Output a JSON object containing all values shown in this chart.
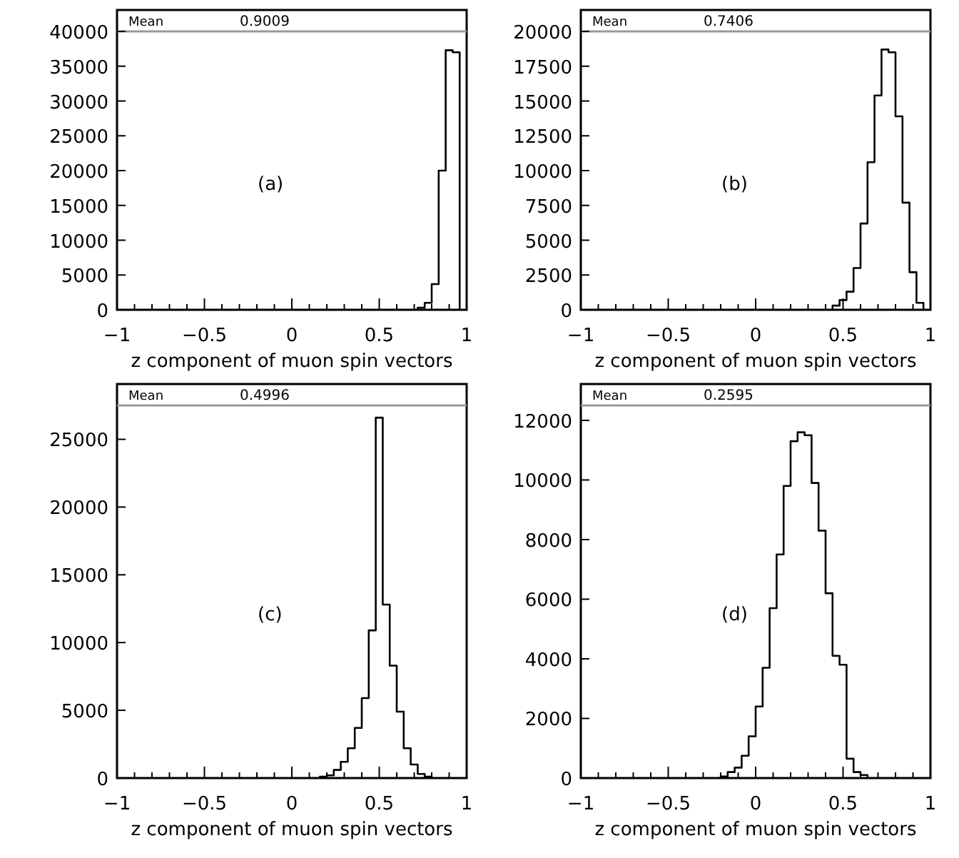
{
  "chart_data": [
    {
      "type": "histogram",
      "xlabel": "z component of muon spin vectors",
      "annotations": [
        "Mean",
        "0.9009",
        "(a)"
      ],
      "bins": [
        0.72,
        0.76,
        0.8,
        0.84,
        0.88,
        0.92,
        0.96
      ],
      "values": [
        300,
        1000,
        3700,
        20000,
        37300,
        37000
      ],
      "color": "#000000",
      "xlim": [
        -1,
        1
      ],
      "xticks": [
        -1,
        -0.5,
        0,
        0.5,
        1
      ],
      "ylim": [
        0,
        40000
      ],
      "yticks": [
        0,
        5000,
        10000,
        15000,
        20000,
        25000,
        30000,
        35000,
        40000
      ],
      "grid": false,
      "legend": false
    },
    {
      "type": "histogram",
      "xlabel": "z component of muon spin vectors",
      "annotations": [
        "Mean",
        "0.7406",
        "(b)"
      ],
      "bins": [
        0.44,
        0.48,
        0.52,
        0.56,
        0.6,
        0.64,
        0.68,
        0.72,
        0.76,
        0.8,
        0.84,
        0.88,
        0.92,
        0.96
      ],
      "values": [
        300,
        700,
        1300,
        3000,
        6200,
        10600,
        15400,
        18700,
        18500,
        13900,
        7700,
        2700,
        500
      ],
      "color": "#000000",
      "xlim": [
        -1,
        1
      ],
      "xticks": [
        -1,
        -0.5,
        0,
        0.5,
        1
      ],
      "ylim": [
        0,
        20000
      ],
      "yticks": [
        0,
        2500,
        5000,
        7500,
        10000,
        12500,
        15000,
        17500,
        20000
      ],
      "grid": false,
      "legend": false
    },
    {
      "type": "histogram",
      "xlabel": "z component of muon spin vectors",
      "annotations": [
        "Mean",
        "0.4996",
        "(c)"
      ],
      "bins": [
        0.16,
        0.2,
        0.24,
        0.28,
        0.32,
        0.36,
        0.4,
        0.44,
        0.48,
        0.52,
        0.56,
        0.6,
        0.64,
        0.68,
        0.72,
        0.76,
        0.8
      ],
      "values": [
        100,
        200,
        600,
        1200,
        2200,
        3700,
        5900,
        10900,
        26600,
        12800,
        8300,
        4900,
        2200,
        1000,
        300,
        100
      ],
      "color": "#000000",
      "xlim": [
        -1,
        1
      ],
      "xticks": [
        -1,
        -0.5,
        0,
        0.5,
        1
      ],
      "ylim": [
        0,
        27500
      ],
      "yticks": [
        0,
        5000,
        10000,
        15000,
        20000,
        25000
      ],
      "grid": false,
      "legend": false
    },
    {
      "type": "histogram",
      "xlabel": "z component of muon spin vectors",
      "annotations": [
        "Mean",
        "0.2595",
        "(d)"
      ],
      "bins": [
        -0.2,
        -0.16,
        -0.12,
        -0.08,
        -0.04,
        0,
        0.04,
        0.08,
        0.12,
        0.16,
        0.2,
        0.24,
        0.28,
        0.32,
        0.36,
        0.4,
        0.44,
        0.48,
        0.52,
        0.56,
        0.6,
        0.64
      ],
      "values": [
        50,
        200,
        350,
        750,
        1400,
        2400,
        3700,
        5700,
        7500,
        9800,
        11300,
        11600,
        11500,
        9900,
        8300,
        6200,
        4100,
        3800,
        650,
        200,
        100
      ],
      "color": "#000000",
      "xlim": [
        -1,
        1
      ],
      "xticks": [
        -1,
        -0.5,
        0,
        0.5,
        1
      ],
      "ylim": [
        0,
        12500
      ],
      "yticks": [
        0,
        2000,
        4000,
        6000,
        8000,
        10000,
        12000
      ],
      "grid": false,
      "legend": false
    }
  ]
}
